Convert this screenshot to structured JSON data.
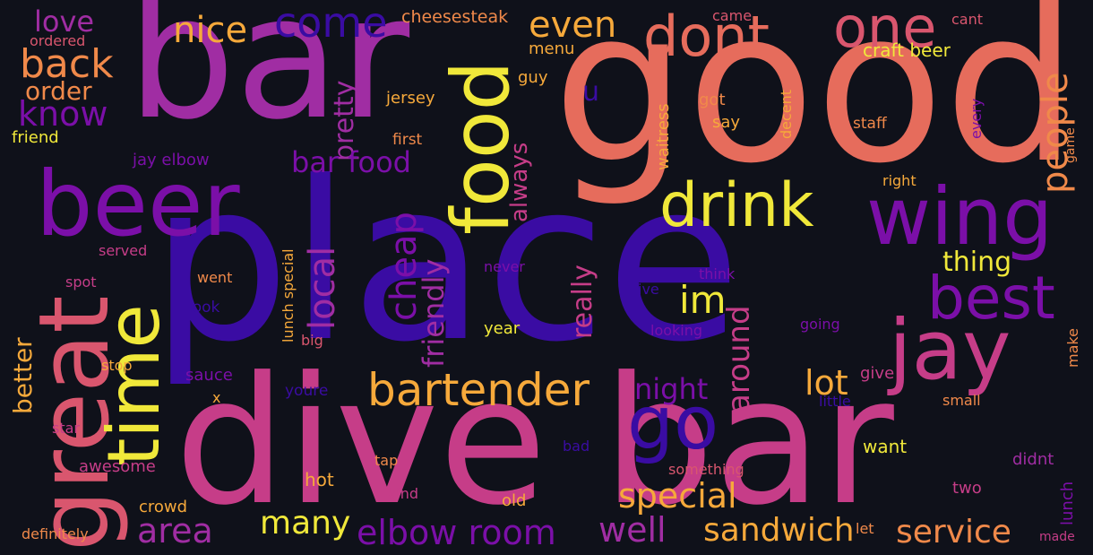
{
  "background": "#0f111a",
  "palette": {
    "indigo": "#3a0ca3",
    "violet": "#7b0fa8",
    "magenta": "#a02da3",
    "pink": "#c63d88",
    "rose": "#d9566e",
    "coral": "#e66c5c",
    "orange": "#f0894a",
    "amber": "#f6a93b",
    "yellow": "#f0e83a"
  },
  "words": [
    {
      "text": "place",
      "color": "#3a0ca3"
    },
    {
      "text": "good",
      "color": "#e66c5c"
    },
    {
      "text": "bar",
      "color": "#a02da3"
    },
    {
      "text": "dive bar",
      "color": "#c63d88"
    },
    {
      "text": "beer",
      "color": "#7b0fa8"
    },
    {
      "text": "great",
      "color": "#d9566e"
    },
    {
      "text": "time",
      "color": "#f0e83a"
    },
    {
      "text": "wing",
      "color": "#7b0fa8"
    },
    {
      "text": "food",
      "color": "#f0e83a"
    },
    {
      "text": "drink",
      "color": "#f0e83a"
    },
    {
      "text": "jay",
      "color": "#c63d88"
    },
    {
      "text": "dont",
      "color": "#e66c5c"
    },
    {
      "text": "one",
      "color": "#d9566e"
    },
    {
      "text": "go",
      "color": "#3a0ca3"
    },
    {
      "text": "bartender",
      "color": "#f6a93b"
    },
    {
      "text": "best",
      "color": "#7b0fa8"
    },
    {
      "text": "back",
      "color": "#f0894a"
    },
    {
      "text": "know",
      "color": "#7b0fa8"
    },
    {
      "text": "love",
      "color": "#a02da3"
    },
    {
      "text": "order",
      "color": "#f0894a"
    },
    {
      "text": "nice",
      "color": "#f6a93b"
    },
    {
      "text": "come",
      "color": "#3a0ca3"
    },
    {
      "text": "even",
      "color": "#f6a93b"
    },
    {
      "text": "people",
      "color": "#f0894a"
    },
    {
      "text": "im",
      "color": "#f0e83a"
    },
    {
      "text": "local",
      "color": "#a02da3"
    },
    {
      "text": "cheap",
      "color": "#7b0fa8"
    },
    {
      "text": "pretty",
      "color": "#a02da3"
    },
    {
      "text": "bar food",
      "color": "#7b0fa8"
    },
    {
      "text": "always",
      "color": "#c63d88"
    },
    {
      "text": "friendly",
      "color": "#a02da3"
    },
    {
      "text": "really",
      "color": "#c63d88"
    },
    {
      "text": "special",
      "color": "#f6a93b"
    },
    {
      "text": "night",
      "color": "#7b0fa8"
    },
    {
      "text": "around",
      "color": "#c63d88"
    },
    {
      "text": "lot",
      "color": "#f6a93b"
    },
    {
      "text": "thing",
      "color": "#f0e83a"
    },
    {
      "text": "many",
      "color": "#f0e83a"
    },
    {
      "text": "area",
      "color": "#a02da3"
    },
    {
      "text": "elbow room",
      "color": "#7b0fa8"
    },
    {
      "text": "well",
      "color": "#a02da3"
    },
    {
      "text": "sandwich",
      "color": "#f6a93b"
    },
    {
      "text": "service",
      "color": "#f0894a"
    },
    {
      "text": "better",
      "color": "#f6a93b"
    },
    {
      "text": "u",
      "color": "#3a0ca3"
    },
    {
      "text": "cheesesteak",
      "color": "#f0894a"
    },
    {
      "text": "menu",
      "color": "#f6a93b"
    },
    {
      "text": "came",
      "color": "#d9566e"
    },
    {
      "text": "cant",
      "color": "#d9566e"
    },
    {
      "text": "craft beer",
      "color": "#f0e83a"
    },
    {
      "text": "ordered",
      "color": "#d9566e"
    },
    {
      "text": "friend",
      "color": "#f0e83a"
    },
    {
      "text": "jersey",
      "color": "#f6a93b"
    },
    {
      "text": "guy",
      "color": "#f6a93b"
    },
    {
      "text": "first",
      "color": "#f0894a"
    },
    {
      "text": "jay elbow",
      "color": "#7b0fa8"
    },
    {
      "text": "waitress",
      "color": "#f6a93b"
    },
    {
      "text": "got",
      "color": "#f0894a"
    },
    {
      "text": "say",
      "color": "#f6a93b"
    },
    {
      "text": "decent",
      "color": "#f6a93b"
    },
    {
      "text": "staff",
      "color": "#f0894a"
    },
    {
      "text": "every",
      "color": "#7b0fa8"
    },
    {
      "text": "game",
      "color": "#f0894a"
    },
    {
      "text": "right",
      "color": "#f6a93b"
    },
    {
      "text": "served",
      "color": "#c63d88"
    },
    {
      "text": "spot",
      "color": "#c63d88"
    },
    {
      "text": "went",
      "color": "#f0894a"
    },
    {
      "text": "lunch special",
      "color": "#f6a93b"
    },
    {
      "text": "look",
      "color": "#3a0ca3"
    },
    {
      "text": "big",
      "color": "#d9566e"
    },
    {
      "text": "never",
      "color": "#7b0fa8"
    },
    {
      "text": "ive",
      "color": "#3a0ca3"
    },
    {
      "text": "think",
      "color": "#7b0fa8"
    },
    {
      "text": "year",
      "color": "#f0e83a"
    },
    {
      "text": "looking",
      "color": "#7b0fa8"
    },
    {
      "text": "going",
      "color": "#7b0fa8"
    },
    {
      "text": "make",
      "color": "#f0894a"
    },
    {
      "text": "stop",
      "color": "#f6a93b"
    },
    {
      "text": "sauce",
      "color": "#7b0fa8"
    },
    {
      "text": "x",
      "color": "#f6a93b"
    },
    {
      "text": "youre",
      "color": "#3a0ca3"
    },
    {
      "text": "give",
      "color": "#c63d88"
    },
    {
      "text": "little",
      "color": "#3a0ca3"
    },
    {
      "text": "small",
      "color": "#f0894a"
    },
    {
      "text": "star",
      "color": "#c63d88"
    },
    {
      "text": "awesome",
      "color": "#c63d88"
    },
    {
      "text": "hot",
      "color": "#f6a93b"
    },
    {
      "text": "want",
      "color": "#f0e83a"
    },
    {
      "text": "tap",
      "color": "#f0894a"
    },
    {
      "text": "bad",
      "color": "#3a0ca3"
    },
    {
      "text": "something",
      "color": "#d9566e"
    },
    {
      "text": "didnt",
      "color": "#a02da3"
    },
    {
      "text": "lunch",
      "color": "#7b0fa8"
    },
    {
      "text": "two",
      "color": "#c63d88"
    },
    {
      "text": "crowd",
      "color": "#f6a93b"
    },
    {
      "text": "kind",
      "color": "#c63d88"
    },
    {
      "text": "old",
      "color": "#f6a93b"
    },
    {
      "text": "definitely",
      "color": "#f0894a"
    },
    {
      "text": "let",
      "color": "#f0894a"
    },
    {
      "text": "made",
      "color": "#c63d88"
    }
  ]
}
